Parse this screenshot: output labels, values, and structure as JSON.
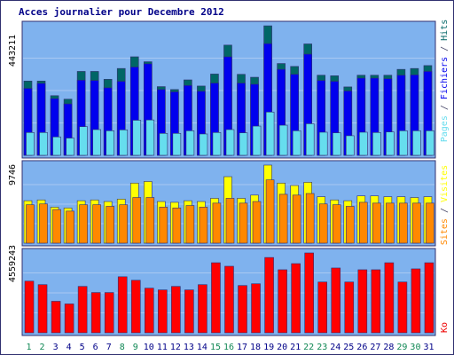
{
  "chart_data": {
    "type": "bar",
    "title": "Acces journalier pour Decembre 2012",
    "categories": [
      "1",
      "2",
      "3",
      "4",
      "5",
      "6",
      "7",
      "8",
      "9",
      "10",
      "11",
      "12",
      "13",
      "14",
      "15",
      "16",
      "17",
      "18",
      "19",
      "20",
      "21",
      "22",
      "23",
      "24",
      "25",
      "26",
      "27",
      "28",
      "29",
      "30",
      "31"
    ],
    "weekend_days": [
      "1",
      "2",
      "8",
      "9",
      "15",
      "16",
      "22",
      "23",
      "29",
      "30"
    ],
    "panels": [
      {
        "id": "pages-fichiers-hits",
        "scale_label": "443211",
        "ylim": [
          0,
          443211
        ],
        "series": [
          {
            "name": "Pages",
            "color": "#66ddee",
            "values": [
              78000,
              78000,
              63000,
              59000,
              98000,
              88000,
              84000,
              87000,
              120000,
              121000,
              75000,
              75000,
              84000,
              73000,
              78000,
              88000,
              77000,
              100000,
              148000,
              103000,
              84000,
              108000,
              79000,
              77000,
              67000,
              79000,
              78000,
              80000,
              84000,
              84000,
              84000
            ]
          },
          {
            "name": "Fichiers",
            "color": "#0000ee",
            "values": [
              229000,
              246000,
              194000,
              176000,
              257000,
              256000,
              231000,
              253000,
              302000,
              313000,
              225000,
              217000,
              239000,
              219000,
              247000,
              337000,
              247000,
              243000,
              382000,
              294000,
              277000,
              346000,
              256000,
              253000,
              220000,
              264000,
              264000,
              262000,
              274000,
              275000,
              287000
            ]
          },
          {
            "name": "Hits",
            "color": "#006666",
            "values": [
              254000,
              254000,
              204000,
              192000,
              287000,
              287000,
              260000,
              297000,
              337000,
              320000,
              235000,
              225000,
              258000,
              237000,
              278000,
              377000,
              277000,
              267000,
              443000,
              314000,
              304000,
              381000,
              274000,
              272000,
              234000,
              274000,
              274000,
              274000,
              294000,
              297000,
              307000
            ]
          }
        ]
      },
      {
        "id": "visites-sites",
        "scale_label": "9746",
        "ylim": [
          0,
          9746
        ],
        "series": [
          {
            "name": "Visites",
            "color": "#ffff00",
            "values": [
              5300,
              5400,
              4500,
              4400,
              5300,
              5400,
              5200,
              5500,
              7500,
              7700,
              5200,
              5100,
              5300,
              5200,
              5600,
              8300,
              5600,
              6000,
              9746,
              7500,
              7200,
              7600,
              5800,
              5400,
              5300,
              5900,
              5900,
              5800,
              5800,
              5700,
              5800
            ]
          },
          {
            "name": "Sites",
            "color": "#ff8800",
            "values": [
              4800,
              4900,
              4200,
              4000,
              4800,
              4800,
              4600,
              4800,
              5700,
              5700,
              4500,
              4400,
              4700,
              4500,
              5000,
              5600,
              5000,
              5200,
              7900,
              6100,
              6000,
              6200,
              4900,
              4800,
              4600,
              5100,
              5000,
              5000,
              5000,
              5000,
              5000
            ]
          }
        ]
      },
      {
        "id": "ko",
        "scale_label": "4559243",
        "ylim": [
          0,
          4559243
        ],
        "series": [
          {
            "name": "Ko",
            "color": "#ff0000",
            "values": [
              2950000,
              2750000,
              1800000,
              1650000,
              2650000,
              2300000,
              2300000,
              3200000,
              3000000,
              2550000,
              2450000,
              2650000,
              2450000,
              2750000,
              4000000,
              3800000,
              2700000,
              2800000,
              4300000,
              3600000,
              3950000,
              4559243,
              2900000,
              3700000,
              2900000,
              3600000,
              3600000,
              4000000,
              2900000,
              3650000,
              4000000
            ]
          }
        ]
      }
    ]
  },
  "colors": {
    "background": "#ffffff",
    "panel_bg": "#7fb2ee",
    "panel_border": "#303070",
    "title_text": "#000088",
    "day_text": "#000088",
    "weekend_day_text": "#118855",
    "bar_outline": "#303070",
    "gridline": "#a8c8f2",
    "legend_separator": "#444466",
    "ko_text": "#ee0000"
  }
}
